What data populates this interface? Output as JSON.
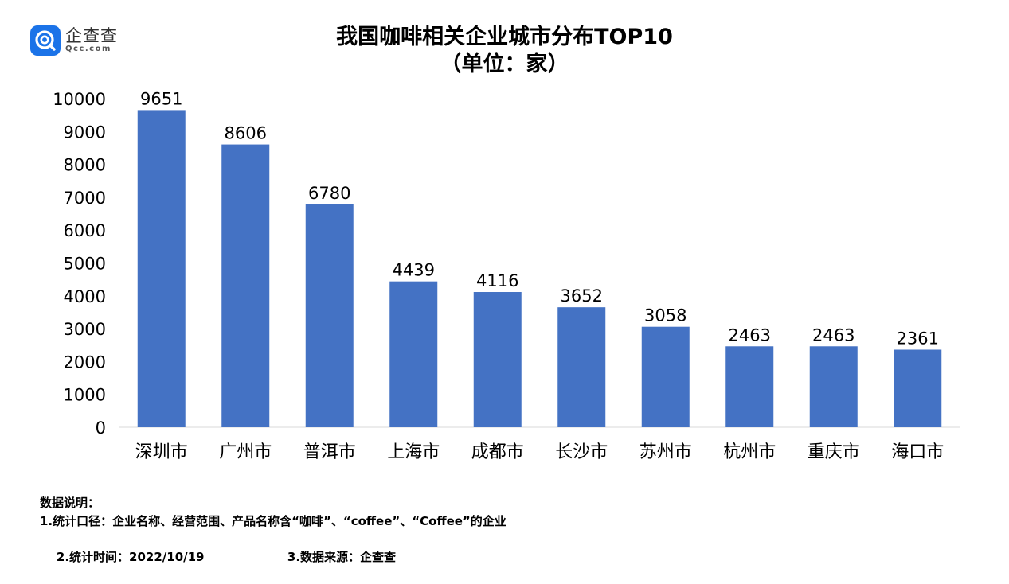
{
  "brand": {
    "name_cn": "企查查",
    "name_en": "Qcc.com"
  },
  "chart_data": {
    "type": "bar",
    "title": "我国咖啡相关企业城市分布TOP10",
    "subtitle": "（单位：家）",
    "categories": [
      "深圳市",
      "广州市",
      "普洱市",
      "上海市",
      "成都市",
      "长沙市",
      "苏州市",
      "杭州市",
      "重庆市",
      "海口市"
    ],
    "values": [
      9651,
      8606,
      6780,
      4439,
      4116,
      3652,
      3058,
      2463,
      2463,
      2361
    ],
    "ylim": [
      0,
      10000
    ],
    "yticks": [
      0,
      1000,
      2000,
      3000,
      4000,
      5000,
      6000,
      7000,
      8000,
      9000,
      10000
    ],
    "bar_color": "#4472c4",
    "grid": false,
    "data_labels": true
  },
  "notes": {
    "heading": "数据说明：",
    "line1": "1.统计口径：企业名称、经营范围、产品名称含“咖啡”、“coffee”、“Coffee”的企业",
    "line2a": "2.统计时间：2022/10/19",
    "line2b": "3.数据来源：企查查"
  }
}
